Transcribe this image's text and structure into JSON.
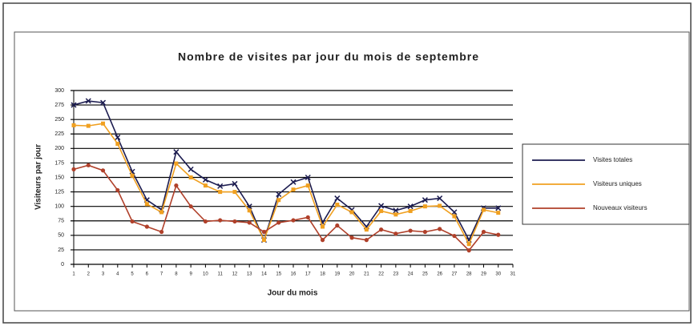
{
  "chart_data": {
    "type": "line",
    "title": "Nombre de visites par jour du mois de septembre",
    "xlabel": "Jour du mois",
    "ylabel": "Visiteurs par jour",
    "x": [
      1,
      2,
      3,
      4,
      5,
      6,
      7,
      8,
      9,
      10,
      11,
      12,
      13,
      14,
      15,
      16,
      17,
      18,
      19,
      20,
      21,
      22,
      23,
      24,
      25,
      26,
      27,
      28,
      29,
      30
    ],
    "xlim": [
      1,
      31
    ],
    "xticks": [
      1,
      2,
      3,
      4,
      5,
      6,
      7,
      8,
      9,
      10,
      11,
      12,
      13,
      14,
      15,
      16,
      17,
      18,
      19,
      20,
      21,
      22,
      23,
      24,
      25,
      26,
      27,
      28,
      29,
      30,
      31
    ],
    "ylim": [
      0,
      300
    ],
    "yticks": [
      0,
      25,
      50,
      75,
      100,
      125,
      150,
      175,
      200,
      225,
      250,
      275,
      300
    ],
    "grid": true,
    "legend": "right",
    "series": [
      {
        "name": "Visites totales",
        "color": "#1c1c50",
        "values": [
          275,
          282,
          279,
          219,
          160,
          111,
          94,
          194,
          164,
          146,
          135,
          139,
          100,
          42,
          121,
          142,
          150,
          72,
          114,
          94,
          65,
          101,
          93,
          100,
          111,
          114,
          90,
          42,
          97,
          97
        ]
      },
      {
        "name": "Visiteurs uniques",
        "color": "#f0a020",
        "values": [
          240,
          239,
          243,
          208,
          153,
          104,
          90,
          174,
          150,
          136,
          125,
          125,
          93,
          42,
          111,
          129,
          136,
          65,
          103,
          90,
          60,
          92,
          86,
          92,
          100,
          101,
          83,
          35,
          94,
          89
        ]
      },
      {
        "name": "Nouveaux visiteurs",
        "color": "#b0402a",
        "values": [
          164,
          171,
          162,
          128,
          74,
          65,
          56,
          136,
          100,
          74,
          76,
          74,
          72,
          56,
          72,
          76,
          81,
          42,
          67,
          46,
          42,
          60,
          53,
          58,
          56,
          61,
          49,
          24,
          56,
          51
        ]
      }
    ]
  }
}
